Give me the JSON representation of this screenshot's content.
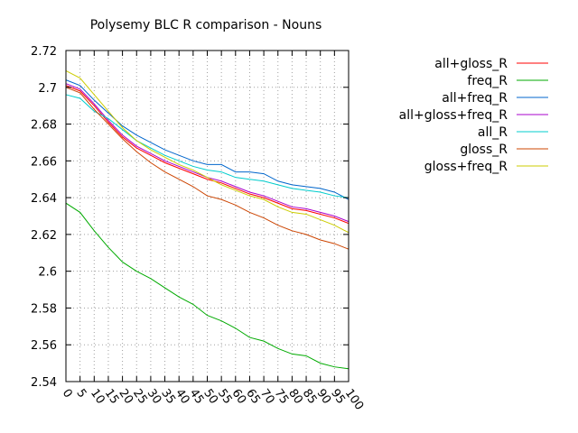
{
  "chart_data": {
    "type": "line",
    "title": "Polysemy BLC R comparison - Nouns",
    "xlabel": "",
    "ylabel": "",
    "x": [
      0,
      5,
      10,
      15,
      20,
      25,
      30,
      35,
      40,
      45,
      50,
      55,
      60,
      65,
      70,
      75,
      80,
      85,
      90,
      95,
      100
    ],
    "xlim": [
      0,
      100
    ],
    "ylim": [
      2.54,
      2.72
    ],
    "x_tick_labels": [
      "0",
      "5",
      "10",
      "15",
      "20",
      "25",
      "30",
      "35",
      "40",
      "45",
      "50",
      "55",
      "60",
      "65",
      "70",
      "75",
      "80",
      "85",
      "90",
      "95",
      "100"
    ],
    "y_tick_labels": [
      "2.54",
      "2.56",
      "2.58",
      "2.6",
      "2.62",
      "2.64",
      "2.66",
      "2.68",
      "2.7",
      "2.72"
    ],
    "y_ticks": [
      2.54,
      2.56,
      2.58,
      2.6,
      2.62,
      2.64,
      2.66,
      2.68,
      2.7,
      2.72
    ],
    "grid": true,
    "legend_position": "top-right outside",
    "series": [
      {
        "name": "all+gloss_R",
        "color": "#ff0000",
        "values": [
          2.701,
          2.698,
          2.69,
          2.681,
          2.673,
          2.667,
          2.663,
          2.659,
          2.656,
          2.653,
          2.65,
          2.648,
          2.645,
          2.642,
          2.64,
          2.637,
          2.634,
          2.633,
          2.631,
          2.629,
          2.626
        ]
      },
      {
        "name": "freq_R",
        "color": "#00aa00",
        "values": [
          2.637,
          2.632,
          2.622,
          2.613,
          2.605,
          2.6,
          2.596,
          2.591,
          2.586,
          2.582,
          2.576,
          2.573,
          2.569,
          2.564,
          2.562,
          2.558,
          2.555,
          2.554,
          2.55,
          2.548,
          2.547
        ]
      },
      {
        "name": "all+freq_R",
        "color": "#0066cc",
        "values": [
          2.704,
          2.701,
          2.693,
          2.686,
          2.679,
          2.674,
          2.67,
          2.666,
          2.663,
          2.66,
          2.658,
          2.658,
          2.654,
          2.654,
          2.653,
          2.649,
          2.647,
          2.646,
          2.645,
          2.643,
          2.639
        ]
      },
      {
        "name": "all+gloss+freq_R",
        "color": "#aa00cc",
        "values": [
          2.702,
          2.699,
          2.691,
          2.682,
          2.674,
          2.668,
          2.664,
          2.66,
          2.657,
          2.654,
          2.651,
          2.649,
          2.646,
          2.643,
          2.641,
          2.638,
          2.635,
          2.634,
          2.632,
          2.63,
          2.627
        ]
      },
      {
        "name": "all_R",
        "color": "#00cccc",
        "values": [
          2.696,
          2.694,
          2.687,
          2.683,
          2.677,
          2.671,
          2.667,
          2.663,
          2.66,
          2.657,
          2.655,
          2.654,
          2.651,
          2.65,
          2.649,
          2.647,
          2.645,
          2.644,
          2.643,
          2.641,
          2.64
        ]
      },
      {
        "name": "gloss_R",
        "color": "#cc4400",
        "values": [
          2.7,
          2.697,
          2.688,
          2.68,
          2.672,
          2.665,
          2.659,
          2.654,
          2.65,
          2.646,
          2.641,
          2.639,
          2.636,
          2.632,
          2.629,
          2.625,
          2.622,
          2.62,
          2.617,
          2.615,
          2.612
        ]
      },
      {
        "name": "gloss+freq_R",
        "color": "#cccc00",
        "values": [
          2.709,
          2.705,
          2.696,
          2.687,
          2.678,
          2.671,
          2.666,
          2.662,
          2.658,
          2.655,
          2.651,
          2.647,
          2.644,
          2.641,
          2.639,
          2.635,
          2.632,
          2.631,
          2.628,
          2.625,
          2.621
        ]
      }
    ]
  }
}
